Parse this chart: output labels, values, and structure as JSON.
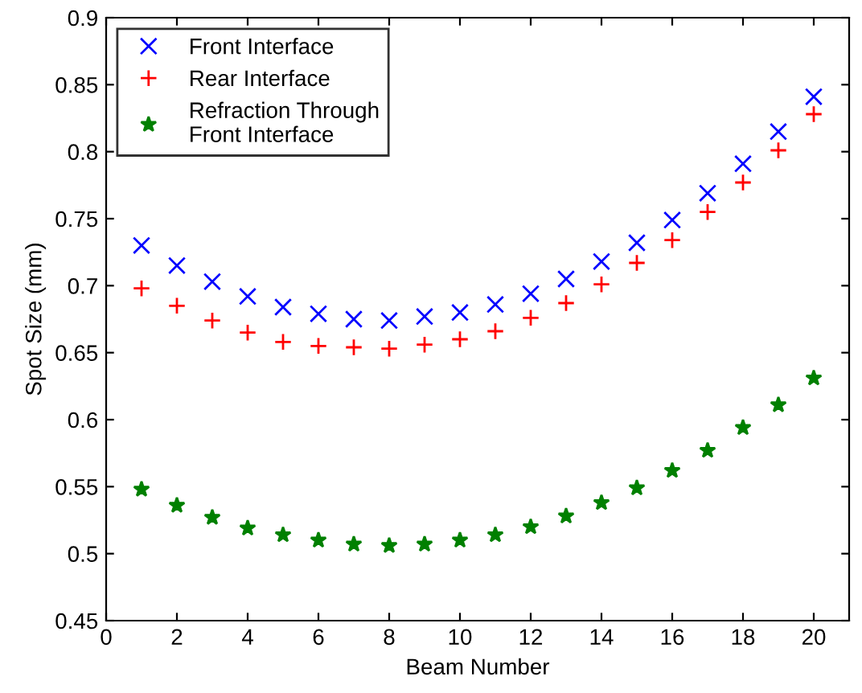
{
  "chart_data": {
    "type": "scatter",
    "xlabel": "Beam Number",
    "ylabel": "Spot Size (mm)",
    "x": [
      1,
      2,
      3,
      4,
      5,
      6,
      7,
      8,
      9,
      10,
      11,
      12,
      13,
      14,
      15,
      16,
      17,
      18,
      19,
      20
    ],
    "series": [
      {
        "name": "Front Interface",
        "color": "#0000ff",
        "marker": "cross",
        "values": [
          0.73,
          0.715,
          0.703,
          0.692,
          0.684,
          0.679,
          0.675,
          0.674,
          0.677,
          0.68,
          0.686,
          0.694,
          0.705,
          0.718,
          0.732,
          0.749,
          0.769,
          0.791,
          0.815,
          0.841
        ]
      },
      {
        "name": "Rear Interface",
        "color": "#ff0000",
        "marker": "plus",
        "values": [
          0.698,
          0.685,
          0.674,
          0.665,
          0.658,
          0.655,
          0.654,
          0.653,
          0.656,
          0.66,
          0.666,
          0.676,
          0.687,
          0.701,
          0.717,
          0.734,
          0.755,
          0.777,
          0.801,
          0.828
        ]
      },
      {
        "name": "Refraction Through\nFront Interface",
        "color": "#008000",
        "marker": "star",
        "values": [
          0.548,
          0.536,
          0.527,
          0.519,
          0.514,
          0.51,
          0.507,
          0.506,
          0.507,
          0.51,
          0.514,
          0.52,
          0.528,
          0.538,
          0.549,
          0.562,
          0.577,
          0.594,
          0.611,
          0.631
        ]
      }
    ],
    "xlim": [
      0,
      21
    ],
    "xticks": [
      0,
      2,
      4,
      6,
      8,
      10,
      12,
      14,
      16,
      18,
      20
    ],
    "ylim": [
      0.45,
      0.9
    ],
    "yticks": [
      0.45,
      0.5,
      0.55,
      0.6,
      0.65,
      0.7,
      0.75,
      0.8,
      0.85,
      0.9
    ],
    "grid": false,
    "legend": "top left"
  }
}
